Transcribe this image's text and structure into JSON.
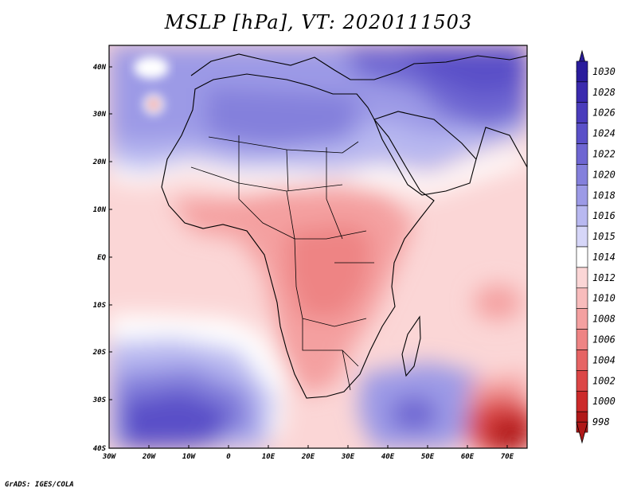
{
  "title": "MSLP [hPa], VT: 2020111503",
  "credit": "GrADS: IGES/COLA",
  "lon_ticks": [
    "30W",
    "20W",
    "10W",
    "0",
    "10E",
    "20E",
    "30E",
    "40E",
    "50E",
    "60E",
    "70E"
  ],
  "lat_ticks": [
    "40N",
    "30N",
    "20N",
    "10N",
    "EQ",
    "10S",
    "20S",
    "30S",
    "40S"
  ],
  "colorbar": {
    "levels": [
      "1030",
      "1028",
      "1026",
      "1024",
      "1022",
      "1020",
      "1018",
      "1016",
      "1015",
      "1014",
      "1012",
      "1010",
      "1008",
      "1006",
      "1004",
      "1002",
      "1000",
      "998"
    ],
    "colors": [
      "#2a1c9c",
      "#3a2aae",
      "#4a3cbc",
      "#5a50c8",
      "#6e66d2",
      "#8480dc",
      "#9c9ae6",
      "#b8b8f0",
      "#d6d6f8",
      "#ffffff",
      "#fbd6d6",
      "#f8bcbc",
      "#f4a0a0",
      "#ee8484",
      "#e66464",
      "#dc4646",
      "#cc2a2a",
      "#b01818"
    ]
  },
  "colors": {
    "ocean_north": "#9c9ae6",
    "land_africa": "#f4a0a0",
    "ocean_tropical": "#fbd6d6",
    "southern_high": "#5a50c8",
    "low_southeast": "#cc2a2a"
  }
}
